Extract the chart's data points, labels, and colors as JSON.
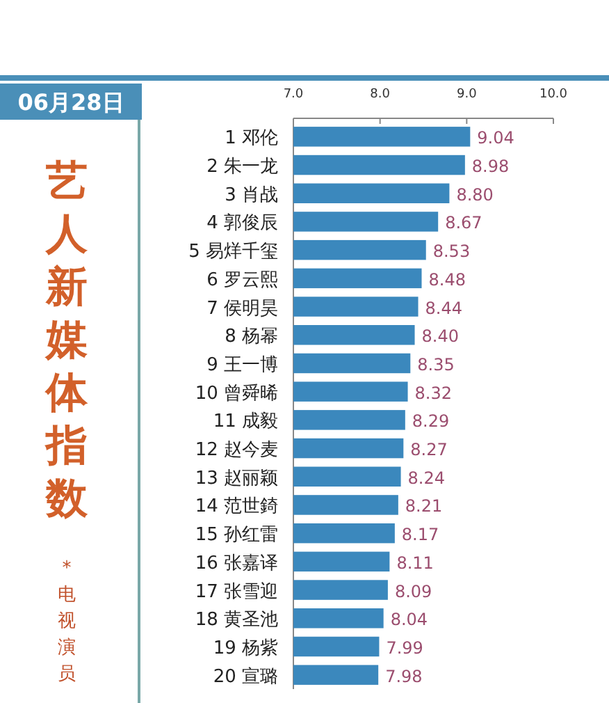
{
  "chart_data": {
    "type": "bar",
    "orientation": "horizontal",
    "title": "艺人新媒体指数",
    "subtitle": "*电视演员",
    "annotations": [
      "06月28日"
    ],
    "categories": [
      "1 邓伦",
      "2 朱一龙",
      "3 肖战",
      "4 郭俊辰",
      "5 易烊千玺",
      "6 罗云熙",
      "7 侯明昊",
      "8 杨幂",
      "9 王一博",
      "10 曾舜晞",
      "11 成毅",
      "12 赵今麦",
      "13 赵丽颖",
      "14 范世錡",
      "15 孙红雷",
      "16 张嘉译",
      "17 张雪迎",
      "18 黄圣池",
      "19 杨紫",
      "20 宣璐"
    ],
    "values": [
      9.04,
      8.98,
      8.8,
      8.67,
      8.53,
      8.48,
      8.44,
      8.4,
      8.35,
      8.32,
      8.29,
      8.27,
      8.24,
      8.21,
      8.17,
      8.11,
      8.09,
      8.04,
      7.99,
      7.98
    ],
    "value_labels": [
      "9.04",
      "8.98",
      "8.80",
      "8.67",
      "8.53",
      "8.48",
      "8.44",
      "8.40",
      "8.35",
      "8.32",
      "8.29",
      "8.27",
      "8.24",
      "8.21",
      "8.17",
      "8.11",
      "8.09",
      "8.04",
      "7.99",
      "7.98"
    ],
    "color": "#3b88bd",
    "xlim": [
      7,
      10
    ],
    "xticks": [
      {
        "value": 7,
        "label": "7.0"
      },
      {
        "value": 8,
        "label": "8.0"
      },
      {
        "value": 9,
        "label": "9.0"
      },
      {
        "value": 10,
        "label": "10.0"
      }
    ],
    "grid": false
  }
}
